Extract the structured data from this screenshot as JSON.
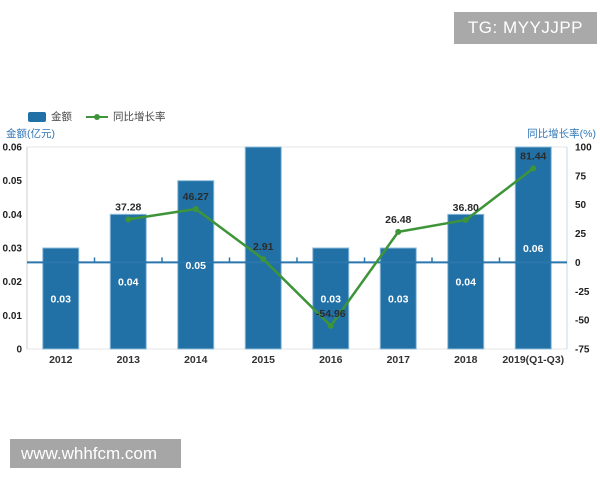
{
  "watermarks": {
    "top_badge": "TG: MYYJJPP",
    "bottom_bar": "www.whhfcm.com"
  },
  "legend": [
    {
      "label": "金额",
      "type": "bar",
      "color": "#2171a6"
    },
    {
      "label": "同比增长率",
      "type": "line",
      "color": "#3d9439"
    }
  ],
  "axes": {
    "left_title": "金额(亿元)",
    "right_title": "同比增长率(%)",
    "left_ticks": [
      "0.06",
      "0.05",
      "0.04",
      "0.03",
      "0.02",
      "0.01",
      "0"
    ],
    "right_ticks": [
      "100",
      "75",
      "50",
      "25",
      "0",
      "-25",
      "-50",
      "-75"
    ]
  },
  "chart_data": {
    "type": "bar+line",
    "categories": [
      "2012",
      "2013",
      "2014",
      "2015",
      "2016",
      "2017",
      "2018",
      "2019(Q1-Q3)"
    ],
    "series": [
      {
        "name": "金额",
        "type": "bar",
        "axis": "left",
        "unit": "亿元",
        "values": [
          0.03,
          0.04,
          0.05,
          null,
          0.03,
          0.03,
          0.04,
          0.06
        ],
        "labels": [
          "0.03",
          "0.04",
          "0.05",
          "",
          "0.03",
          "0.03",
          "0.04",
          "0.06"
        ],
        "clipped_indices": [
          3
        ]
      },
      {
        "name": "同比增长率",
        "type": "line",
        "axis": "right",
        "unit": "%",
        "values": [
          null,
          37.28,
          46.27,
          2.91,
          -54.96,
          26.48,
          36.8,
          81.44
        ],
        "labels": [
          "",
          "37.28",
          "46.27",
          "2.91",
          "-54.96",
          "26.48",
          "36.80",
          "81.44"
        ]
      }
    ],
    "left_axis": {
      "min": 0,
      "max": 0.06,
      "step": 0.01
    },
    "right_axis": {
      "min": -75,
      "max": 100,
      "step": 25
    },
    "grid": "minimal",
    "legend_position": "top-left",
    "colors": {
      "bar": "#2171a6",
      "bar_border": "#8fbcdb",
      "line": "#3d9439",
      "zero_line": "#2a76ad",
      "axis_title": "#2e75b6",
      "tick_text": "#1f1f1f",
      "badge_bg": "#a9a9a9",
      "watermark_bg": "#a6a6a6"
    }
  }
}
